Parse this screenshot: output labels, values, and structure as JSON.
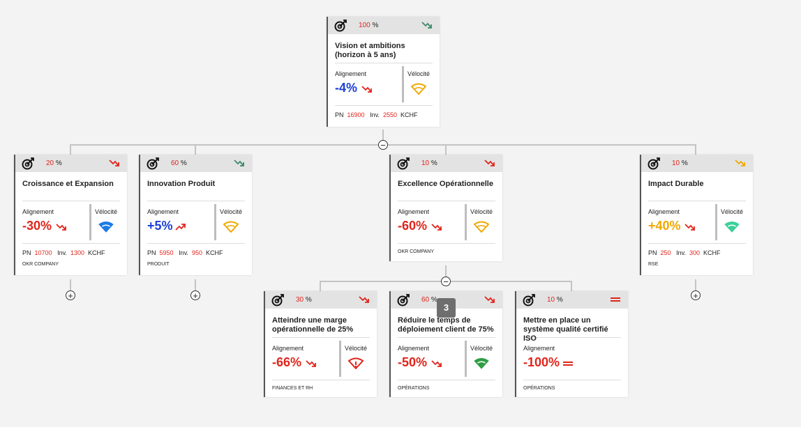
{
  "colors": {
    "red": "#e0241b",
    "blue": "#1d3fd6",
    "orange": "#f0a800",
    "green": "#2f9e44",
    "teal": "#3ccf9a",
    "wifi_blue": "#1a7be8",
    "trend_green": "#3a8a6a"
  },
  "root": {
    "pct": "100",
    "pct_unit": "%",
    "trend": "down-green",
    "title_line1": "Vision et ambitions",
    "title_line2": "(horizon à 5 ans)",
    "align_label": "Alignement",
    "align_value": "-4%",
    "align_trend": "down-red",
    "velocity_label": "Vélocité",
    "velocity_icon": "wifi-orange-outline",
    "pn_label": "PN",
    "pn_value": "16900",
    "inv_label": "Inv.",
    "inv_value": "2550",
    "unit": "KCHF"
  },
  "cards": [
    {
      "pct": "20",
      "pct_unit": "%",
      "trend": "down-red",
      "title": "Croissance et Expansion",
      "align_label": "Alignement",
      "align_value": "-30%",
      "align_trend": "down-red",
      "velocity_label": "Vélocité",
      "velocity_icon": "wifi-blue-filled",
      "pn_label": "PN",
      "pn_value": "10700",
      "inv_label": "Inv.",
      "inv_value": "1300",
      "unit": "KCHF",
      "dept": "OKR COMPANY"
    },
    {
      "pct": "60",
      "pct_unit": "%",
      "trend": "down-green",
      "title": "Innovation Produit",
      "align_label": "Alignement",
      "align_value": "+5%",
      "align_trend": "up-red",
      "velocity_label": "Vélocité",
      "velocity_icon": "wifi-orange-outline",
      "pn_label": "PN",
      "pn_value": "5950",
      "inv_label": "Inv.",
      "inv_value": "950",
      "unit": "KCHF",
      "dept": "PRODUIT"
    },
    {
      "pct": "10",
      "pct_unit": "%",
      "trend": "down-red",
      "title": "Excellence Opérationnelle",
      "align_label": "Alignement",
      "align_value": "-60%",
      "align_trend": "down-red",
      "velocity_label": "Vélocité",
      "velocity_icon": "wifi-orange-outline",
      "dept": "OKR COMPANY"
    },
    {
      "pct": "10",
      "pct_unit": "%",
      "trend": "down-orange",
      "title": "Impact Durable",
      "align_label": "Alignement",
      "align_value": "+40%",
      "align_trend": "down-red",
      "velocity_label": "Vélocité",
      "velocity_icon": "wifi-teal-filled",
      "pn_label": "PN",
      "pn_value": "250",
      "inv_label": "Inv.",
      "inv_value": "300",
      "unit": "KCHF",
      "dept": "RSE"
    }
  ],
  "subcards": [
    {
      "pct": "30",
      "pct_unit": "%",
      "trend": "down-red",
      "title_line1": "Atteindre une marge",
      "title_line2": "opérationnelle de 25%",
      "align_label": "Alignement",
      "align_value": "-66%",
      "align_trend": "down-red",
      "velocity_label": "Vélocité",
      "velocity_icon": "wifi-red-alert",
      "dept": "FINANCES ET RH"
    },
    {
      "pct": "60",
      "pct_unit": "%",
      "trend": "down-red",
      "title_line1": "Réduire le temps de",
      "title_line2": "déploiement client de 75%",
      "align_label": "Alignement",
      "align_value": "-50%",
      "align_trend": "down-red",
      "velocity_label": "Vélocité",
      "velocity_icon": "wifi-green-filled",
      "dept": "OPÉRATIONS"
    },
    {
      "pct": "10",
      "pct_unit": "%",
      "trend": "equal-red",
      "title_line1": "Mettre en place un",
      "title_line2": "système qualité certifié ISO",
      "align_label": "Alignement",
      "align_value": "-100%",
      "align_trend": "equal-red",
      "dept": "OPÉRATIONS"
    }
  ],
  "badge": "3",
  "collapse_symbol": "−",
  "expand_symbol": "+"
}
